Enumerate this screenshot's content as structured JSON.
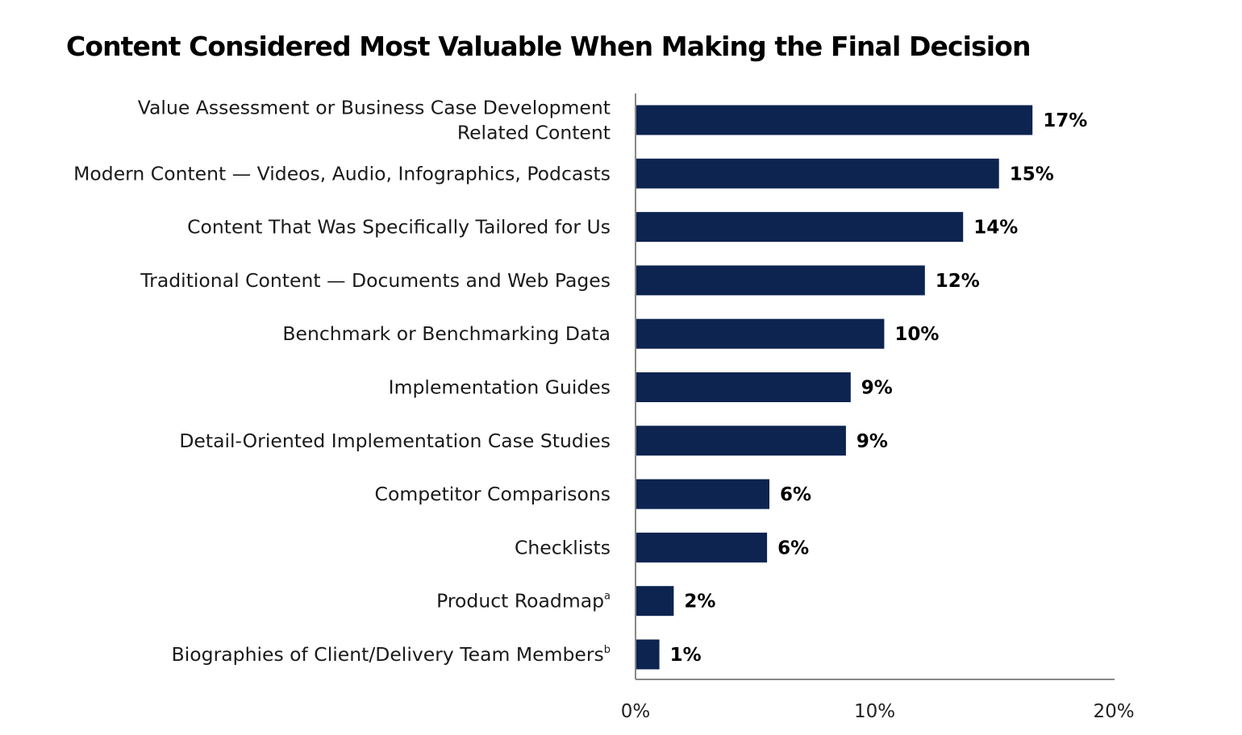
{
  "chart_data": {
    "type": "bar",
    "orientation": "horizontal",
    "title": "Content Considered Most Valuable When Making the Final Decision",
    "categories": [
      [
        "Value Assessment or Business Case Development",
        "Related Content"
      ],
      [
        "Modern Content — Videos, Audio, Infographics, Podcasts"
      ],
      [
        "Content That Was Specifically Tailored for Us"
      ],
      [
        "Traditional Content — Documents and Web Pages"
      ],
      [
        "Benchmark or Benchmarking Data"
      ],
      [
        "Implementation Guides"
      ],
      [
        "Detail-Oriented Implementation Case Studies"
      ],
      [
        "Competitor Comparisons"
      ],
      [
        "Checklists"
      ],
      [
        "Product Roadmap"
      ],
      [
        "Biographies of Client/Delivery Team Members"
      ]
    ],
    "footnotes": [
      "",
      "",
      "",
      "",
      "",
      "",
      "",
      "",
      "",
      "a",
      "b"
    ],
    "values": [
      16.6,
      15.2,
      13.7,
      12.1,
      10.4,
      9.0,
      8.8,
      5.6,
      5.5,
      1.6,
      1.0
    ],
    "value_labels": [
      "17%",
      "15%",
      "14%",
      "12%",
      "10%",
      "9%",
      "9%",
      "6%",
      "6%",
      "2%",
      "1%"
    ],
    "xlim": [
      0,
      20
    ],
    "xticks": [
      0,
      10,
      20
    ],
    "xtick_labels": [
      "0%",
      "10%",
      "20%"
    ],
    "xlabel": "",
    "ylabel": "",
    "grid": false,
    "legend": "none",
    "bar_color": "#0d2350"
  }
}
